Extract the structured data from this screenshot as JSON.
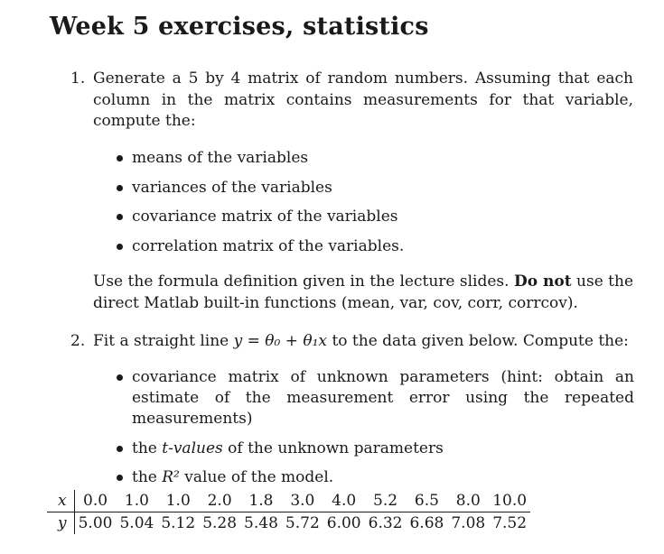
{
  "title": "Week 5 exercises, statistics",
  "exercise1": {
    "number": "1.",
    "intro": "Generate a 5 by 4 matrix of random numbers. Assuming that each column in the matrix contains measurements for that variable, compute the:",
    "bullets": [
      "means of the variables",
      "variances of the variables",
      "covariance matrix of the variables",
      "correlation matrix of the variables."
    ],
    "note_prefix": "Use the formula definition given in the lecture slides.",
    "note_bold": "Do not",
    "note_suffix": "use the direct Matlab built-in functions (mean, var, cov, corr, corrcov)."
  },
  "exercise2": {
    "number": "2.",
    "intro_prefix": "Fit a straight line",
    "equation": "y = θ₀ + θ₁x",
    "intro_suffix": "to the data given below. Compute the:",
    "bullets": [
      {
        "pre": "covariance matrix of unknown parameters (hint: obtain an estimate of the measurement error using the repeated measurements)",
        "italic": "",
        "post": ""
      },
      {
        "pre": "the",
        "italic": "t-values",
        "post": "of the unknown parameters"
      },
      {
        "pre": "the",
        "italic": "R²",
        "post": "value of the model."
      }
    ]
  },
  "data_table": {
    "x_label": "x",
    "y_label": "y",
    "x_values": [
      "0.0",
      "1.0",
      "1.0",
      "2.0",
      "1.8",
      "3.0",
      "4.0",
      "5.2",
      "6.5",
      "8.0",
      "10.0"
    ],
    "y_values": [
      "5.00",
      "5.04",
      "5.12",
      "5.28",
      "5.48",
      "5.72",
      "6.00",
      "6.32",
      "6.68",
      "7.08",
      "7.52"
    ]
  }
}
